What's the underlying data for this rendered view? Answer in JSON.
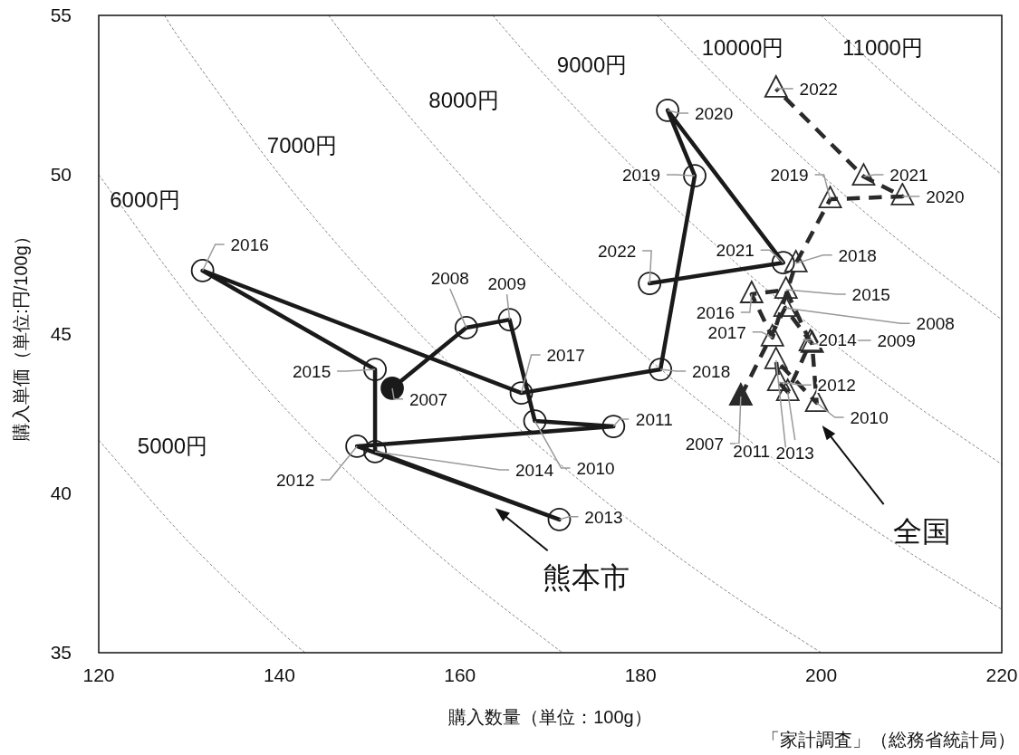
{
  "chart_data": {
    "type": "line",
    "xlabel": "購入数量（単位：100g）",
    "ylabel": "購入単価（単位:円/100g）",
    "xlim": [
      120,
      220
    ],
    "ylim": [
      35,
      55
    ],
    "xticks": [
      120,
      140,
      160,
      180,
      200,
      220
    ],
    "yticks": [
      35,
      40,
      45,
      50,
      55
    ],
    "grid": false,
    "series": [
      {
        "color": "#1a1a1a",
        "marker": "circle",
        "line_style": "solid",
        "x": [
          152.5,
          160.7,
          165.5,
          168.3,
          177.0,
          148.6,
          171.0,
          150.6,
          150.6,
          131.5,
          166.8,
          182.2,
          186.0,
          183.0,
          195.8,
          181.0
        ],
        "values": [
          43.3,
          45.2,
          45.45,
          42.27,
          42.1,
          41.48,
          39.18,
          41.31,
          43.89,
          46.99,
          43.15,
          43.89,
          49.97,
          52.02,
          47.24,
          46.59
        ]
      },
      {
        "color": "#2a2a2a",
        "marker": "triangle",
        "line_style": "dashed",
        "x": [
          191.1,
          196.0,
          199.0,
          199.5,
          195.0,
          195.3,
          196.3,
          198.8,
          196.1,
          192.3,
          194.6,
          197.2,
          201.0,
          209.0,
          204.7,
          195.0
        ],
        "values": [
          43.04,
          45.82,
          44.69,
          42.84,
          44.18,
          43.49,
          43.18,
          44.74,
          46.39,
          46.25,
          44.89,
          47.22,
          49.23,
          49.32,
          49.94,
          52.7
        ]
      },
      {
        "color": "#888888",
        "line_style": "dashed",
        "marker": "none",
        "x": [
          120,
          130,
          140,
          142.86
        ],
        "values": [
          41.67,
          38.46,
          35.71,
          35.0
        ]
      },
      {
        "color": "#888888",
        "line_style": "dashed",
        "marker": "none",
        "x": [
          120,
          130,
          140,
          150,
          160,
          170,
          171.43
        ],
        "values": [
          50.0,
          46.15,
          42.86,
          40.0,
          37.5,
          35.29,
          35.0
        ]
      },
      {
        "color": "#888888",
        "line_style": "dashed",
        "marker": "none",
        "x": [
          127.27,
          130,
          140,
          150,
          160,
          170,
          180,
          190,
          200
        ],
        "values": [
          55.0,
          53.85,
          50.0,
          46.67,
          43.75,
          41.18,
          38.89,
          36.84,
          35.0
        ]
      },
      {
        "color": "#888888",
        "line_style": "dashed",
        "marker": "none",
        "x": [
          145.45,
          150,
          160,
          170,
          180,
          190,
          200,
          210,
          220
        ],
        "values": [
          55.0,
          53.33,
          50.0,
          47.06,
          44.44,
          42.11,
          40.0,
          38.1,
          36.36
        ]
      },
      {
        "color": "#888888",
        "line_style": "dashed",
        "marker": "none",
        "x": [
          163.64,
          170,
          180,
          190,
          200,
          210,
          220
        ],
        "values": [
          55.0,
          52.94,
          50.0,
          47.37,
          45.0,
          42.86,
          40.91
        ]
      },
      {
        "color": "#888888",
        "line_style": "dashed",
        "marker": "none",
        "x": [
          181.82,
          190,
          200,
          210,
          220
        ],
        "values": [
          55.0,
          52.63,
          50.0,
          47.62,
          45.45
        ]
      },
      {
        "color": "#888888",
        "line_style": "dashed",
        "marker": "none",
        "x": [
          200,
          210,
          220
        ],
        "values": [
          55.0,
          52.38,
          50.0
        ]
      }
    ],
    "annotations": [
      {
        "text": "5000円",
        "x": 120.45,
        "y": 41.51
      },
      {
        "text": "6000円",
        "x": 121.9,
        "y": 49.22
      },
      {
        "text": "7000円",
        "x": 137.4,
        "y": 50.95
      },
      {
        "text": "8000円",
        "x": 152.8,
        "y": 52.36
      },
      {
        "text": "9000円",
        "x": 168.3,
        "y": 53.48
      },
      {
        "text": "10000円",
        "x": 185.2,
        "y": 54.0
      },
      {
        "text": "11000円",
        "x": 203.7,
        "y": 54.0
      },
      {
        "text": "熊本市",
        "x": 163.9,
        "y": 39.91
      },
      "全国",
      {
        "text": "2007",
        "x": 152.5,
        "y": 43.3
      },
      {
        "text": "2008",
        "x": 160.7,
        "y": 45.2
      },
      {
        "text": "2009",
        "x": 165.5,
        "y": 45.45
      },
      {
        "text": "2010",
        "x": 168.3,
        "y": 42.27
      },
      {
        "text": "2011",
        "x": 177.0,
        "y": 42.1
      },
      {
        "text": "2012",
        "x": 148.6,
        "y": 41.48
      },
      {
        "text": "2013",
        "x": 171.0,
        "y": 39.18
      },
      {
        "text": "2014",
        "x": 150.6,
        "y": 41.31
      },
      {
        "text": "2015",
        "x": 150.6,
        "y": 43.89
      },
      {
        "text": "2016",
        "x": 131.5,
        "y": 46.99
      },
      {
        "text": "2017",
        "x": 166.8,
        "y": 43.15
      },
      {
        "text": "2018",
        "x": 182.2,
        "y": 43.89
      },
      {
        "text": "2019",
        "x": 186.0,
        "y": 49.97
      },
      {
        "text": "2020",
        "x": 183.0,
        "y": 52.02
      },
      {
        "text": "2021",
        "x": 195.8,
        "y": 47.24
      },
      {
        "text": "2022",
        "x": 181.0,
        "y": 46.59
      },
      {
        "text": "2007",
        "x": 191.1,
        "y": 43.04
      },
      {
        "text": "2008",
        "x": 196.0,
        "y": 45.82
      },
      {
        "text": "2009",
        "x": 199.0,
        "y": 44.69
      },
      {
        "text": "2010",
        "x": 199.5,
        "y": 42.84
      },
      {
        "text": "2011",
        "x": 195.0,
        "y": 44.18
      },
      {
        "text": "2012",
        "x": 195.3,
        "y": 43.49
      },
      {
        "text": "2013",
        "x": 196.3,
        "y": 43.18
      },
      {
        "text": "2014",
        "x": 198.8,
        "y": 44.74
      },
      {
        "text": "2015",
        "x": 196.1,
        "y": 46.39
      },
      {
        "text": "2016",
        "x": 192.3,
        "y": 46.25
      },
      {
        "text": "2017",
        "x": 194.6,
        "y": 44.89
      },
      {
        "text": "2018",
        "x": 197.2,
        "y": 47.22
      },
      {
        "text": "2019",
        "x": 201.0,
        "y": 49.23
      },
      {
        "text": "2020",
        "x": 209.0,
        "y": 49.32
      },
      {
        "text": "2021",
        "x": 204.7,
        "y": 49.94
      },
      {
        "text": "2022",
        "x": 195.0,
        "y": 52.7
      },
      "「家計調査」（総務省統計局）"
    ]
  }
}
